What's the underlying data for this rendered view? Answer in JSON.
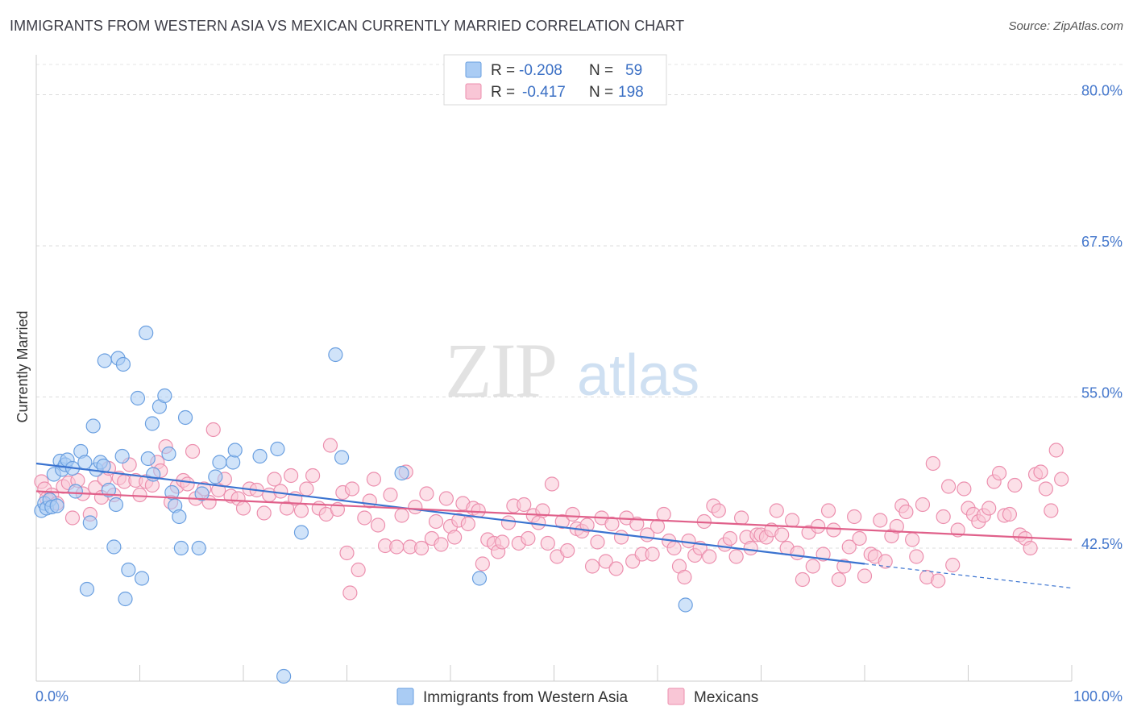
{
  "title": "IMMIGRANTS FROM WESTERN ASIA VS MEXICAN CURRENTLY MARRIED CORRELATION CHART",
  "source": "Source: ZipAtlas.com",
  "watermark": {
    "part1": "ZIP",
    "part2": "atlas"
  },
  "legend": {
    "r_label": "R =",
    "n_label": "N =",
    "rows": [
      {
        "r": "-0.208",
        "n": "59",
        "color": "#aaccf4",
        "stroke": "#6a9fe0"
      },
      {
        "r": "-0.417",
        "n": "198",
        "color": "#f9c6d6",
        "stroke": "#ec8fae"
      }
    ]
  },
  "chart_data": {
    "type": "scatter",
    "title": "IMMIGRANTS FROM WESTERN ASIA VS MEXICAN CURRENTLY MARRIED CORRELATION CHART",
    "xlabel": "",
    "ylabel": "Currently Married",
    "xlim": [
      0,
      100
    ],
    "ylim": [
      31.5,
      82.5
    ],
    "x_tick_labels": [
      "0.0%",
      "100.0%"
    ],
    "y_ticks": [
      42.5,
      55.0,
      67.5,
      80.0
    ],
    "y_tick_labels": [
      "42.5%",
      "55.0%",
      "67.5%",
      "80.0%"
    ],
    "grid": true,
    "legend_position": "top-center",
    "series": [
      {
        "name": "Immigrants from Western Asia",
        "color": "#aaccf4",
        "edge": "#6a9fe0",
        "line_color": "#3a73d0",
        "R": -0.208,
        "N": 59,
        "trend": {
          "x0": 0,
          "y0": 49.5,
          "x1": 80,
          "y1": 41.2,
          "dash_to_x": 100,
          "dash_to_y": 39.2
        },
        "points": [
          [
            0.5,
            45.6
          ],
          [
            0.8,
            46.2
          ],
          [
            1.0,
            45.8
          ],
          [
            1.3,
            46.5
          ],
          [
            1.5,
            45.9
          ],
          [
            1.7,
            48.6
          ],
          [
            2.0,
            46.0
          ],
          [
            2.3,
            49.7
          ],
          [
            2.5,
            49.0
          ],
          [
            2.8,
            49.4
          ],
          [
            3.0,
            49.8
          ],
          [
            3.5,
            49.1
          ],
          [
            3.8,
            47.2
          ],
          [
            4.3,
            50.5
          ],
          [
            4.7,
            49.6
          ],
          [
            5.2,
            44.6
          ],
          [
            5.5,
            52.6
          ],
          [
            5.8,
            49.0
          ],
          [
            6.2,
            49.6
          ],
          [
            6.5,
            49.3
          ],
          [
            6.6,
            58.0
          ],
          [
            7.0,
            47.3
          ],
          [
            7.5,
            42.6
          ],
          [
            7.7,
            46.1
          ],
          [
            7.9,
            58.2
          ],
          [
            8.3,
            50.1
          ],
          [
            8.4,
            57.7
          ],
          [
            8.6,
            38.3
          ],
          [
            8.9,
            40.7
          ],
          [
            9.8,
            54.9
          ],
          [
            10.2,
            40.0
          ],
          [
            10.6,
            60.3
          ],
          [
            10.8,
            49.9
          ],
          [
            11.2,
            52.8
          ],
          [
            11.3,
            48.6
          ],
          [
            11.9,
            54.2
          ],
          [
            12.4,
            55.1
          ],
          [
            12.8,
            50.3
          ],
          [
            13.1,
            47.1
          ],
          [
            13.4,
            46.0
          ],
          [
            13.8,
            45.1
          ],
          [
            14.0,
            42.5
          ],
          [
            14.4,
            53.3
          ],
          [
            15.7,
            42.5
          ],
          [
            16.0,
            47.0
          ],
          [
            17.3,
            48.4
          ],
          [
            17.7,
            49.6
          ],
          [
            19.0,
            49.6
          ],
          [
            19.2,
            50.6
          ],
          [
            21.6,
            50.1
          ],
          [
            23.3,
            50.7
          ],
          [
            25.6,
            43.8
          ],
          [
            28.9,
            58.5
          ],
          [
            29.5,
            50.0
          ],
          [
            35.3,
            48.7
          ],
          [
            42.8,
            40.0
          ],
          [
            62.7,
            37.8
          ],
          [
            23.9,
            31.9
          ],
          [
            4.9,
            39.1
          ]
        ]
      },
      {
        "name": "Mexicans",
        "color": "#f9c6d6",
        "edge": "#ec8fae",
        "line_color": "#e0608a",
        "R": -0.417,
        "N": 198,
        "trend": {
          "x0": 0,
          "y0": 47.2,
          "x1": 100,
          "y1": 43.2
        },
        "points": [
          [
            0.5,
            48.0
          ],
          [
            0.8,
            47.4
          ],
          [
            1.0,
            46.6
          ],
          [
            1.5,
            46.9
          ],
          [
            2.0,
            46.2
          ],
          [
            2.6,
            47.6
          ],
          [
            3.1,
            47.9
          ],
          [
            3.5,
            45.0
          ],
          [
            4.0,
            48.1
          ],
          [
            4.5,
            47.0
          ],
          [
            5.2,
            45.3
          ],
          [
            5.7,
            47.5
          ],
          [
            6.3,
            46.7
          ],
          [
            6.6,
            48.2
          ],
          [
            7.0,
            49.1
          ],
          [
            7.5,
            46.9
          ],
          [
            8.0,
            48.3
          ],
          [
            8.5,
            48.0
          ],
          [
            9.0,
            49.4
          ],
          [
            9.6,
            48.1
          ],
          [
            10.0,
            46.9
          ],
          [
            10.6,
            48.0
          ],
          [
            11.2,
            47.7
          ],
          [
            11.7,
            49.6
          ],
          [
            12.0,
            48.9
          ],
          [
            12.5,
            50.9
          ],
          [
            13.0,
            46.3
          ],
          [
            13.6,
            47.6
          ],
          [
            14.2,
            48.1
          ],
          [
            14.6,
            47.8
          ],
          [
            15.1,
            50.5
          ],
          [
            15.4,
            46.6
          ],
          [
            16.2,
            47.4
          ],
          [
            16.7,
            46.3
          ],
          [
            17.1,
            52.3
          ],
          [
            17.6,
            47.3
          ],
          [
            18.2,
            48.2
          ],
          [
            18.8,
            46.8
          ],
          [
            19.5,
            46.6
          ],
          [
            20.0,
            45.8
          ],
          [
            20.6,
            47.4
          ],
          [
            21.3,
            47.3
          ],
          [
            22.0,
            45.4
          ],
          [
            22.5,
            46.9
          ],
          [
            23.0,
            48.2
          ],
          [
            23.6,
            47.2
          ],
          [
            24.2,
            45.8
          ],
          [
            24.6,
            48.5
          ],
          [
            25.0,
            46.6
          ],
          [
            25.6,
            45.6
          ],
          [
            26.1,
            47.4
          ],
          [
            26.7,
            48.5
          ],
          [
            27.3,
            45.8
          ],
          [
            28.0,
            45.3
          ],
          [
            28.4,
            51.0
          ],
          [
            29.1,
            45.7
          ],
          [
            29.6,
            47.1
          ],
          [
            30.0,
            42.1
          ],
          [
            30.5,
            47.4
          ],
          [
            31.1,
            40.7
          ],
          [
            31.7,
            45.0
          ],
          [
            32.2,
            46.4
          ],
          [
            32.6,
            48.2
          ],
          [
            33.0,
            44.4
          ],
          [
            33.7,
            42.7
          ],
          [
            34.2,
            46.9
          ],
          [
            34.8,
            42.6
          ],
          [
            35.3,
            45.2
          ],
          [
            35.7,
            48.8
          ],
          [
            36.1,
            42.6
          ],
          [
            36.6,
            45.9
          ],
          [
            37.2,
            42.5
          ],
          [
            37.7,
            47.0
          ],
          [
            38.2,
            43.3
          ],
          [
            38.6,
            44.7
          ],
          [
            39.1,
            42.8
          ],
          [
            39.6,
            46.6
          ],
          [
            40.0,
            44.3
          ],
          [
            40.4,
            43.4
          ],
          [
            40.8,
            44.8
          ],
          [
            41.2,
            46.2
          ],
          [
            41.7,
            44.5
          ],
          [
            42.2,
            45.8
          ],
          [
            42.7,
            45.6
          ],
          [
            43.1,
            41.2
          ],
          [
            43.6,
            43.2
          ],
          [
            44.2,
            42.9
          ],
          [
            44.6,
            42.2
          ],
          [
            45.0,
            43.0
          ],
          [
            45.6,
            44.6
          ],
          [
            46.1,
            46.0
          ],
          [
            46.6,
            42.9
          ],
          [
            47.1,
            46.1
          ],
          [
            47.5,
            43.3
          ],
          [
            48.0,
            45.2
          ],
          [
            48.5,
            44.6
          ],
          [
            48.9,
            45.6
          ],
          [
            49.4,
            42.9
          ],
          [
            49.8,
            47.8
          ],
          [
            50.3,
            41.8
          ],
          [
            50.8,
            44.7
          ],
          [
            51.3,
            42.3
          ],
          [
            51.8,
            45.3
          ],
          [
            52.2,
            44.1
          ],
          [
            52.7,
            43.9
          ],
          [
            53.2,
            44.4
          ],
          [
            53.7,
            41.0
          ],
          [
            54.2,
            43.0
          ],
          [
            54.6,
            45.0
          ],
          [
            55.0,
            41.4
          ],
          [
            55.6,
            44.5
          ],
          [
            56.0,
            40.8
          ],
          [
            56.5,
            43.4
          ],
          [
            57.0,
            45.0
          ],
          [
            57.6,
            41.4
          ],
          [
            58.0,
            44.5
          ],
          [
            58.5,
            42.0
          ],
          [
            59.0,
            43.6
          ],
          [
            59.5,
            42.0
          ],
          [
            60.0,
            44.3
          ],
          [
            60.6,
            45.3
          ],
          [
            61.1,
            43.1
          ],
          [
            61.6,
            42.5
          ],
          [
            62.1,
            41.0
          ],
          [
            62.6,
            40.1
          ],
          [
            63.0,
            43.1
          ],
          [
            63.6,
            41.9
          ],
          [
            64.1,
            42.5
          ],
          [
            64.5,
            44.7
          ],
          [
            65.0,
            41.8
          ],
          [
            65.4,
            46.0
          ],
          [
            65.9,
            45.6
          ],
          [
            66.5,
            42.8
          ],
          [
            67.0,
            43.3
          ],
          [
            67.6,
            41.8
          ],
          [
            68.1,
            45.0
          ],
          [
            68.6,
            43.4
          ],
          [
            69.0,
            42.5
          ],
          [
            69.6,
            43.6
          ],
          [
            70.0,
            43.6
          ],
          [
            70.5,
            43.4
          ],
          [
            71.0,
            44.0
          ],
          [
            71.5,
            45.6
          ],
          [
            72.0,
            43.6
          ],
          [
            72.5,
            42.5
          ],
          [
            73.0,
            44.8
          ],
          [
            73.5,
            42.1
          ],
          [
            74.0,
            39.9
          ],
          [
            74.6,
            43.8
          ],
          [
            75.0,
            41.0
          ],
          [
            75.5,
            44.3
          ],
          [
            76.0,
            42.0
          ],
          [
            76.5,
            45.6
          ],
          [
            77.0,
            44.0
          ],
          [
            77.5,
            39.9
          ],
          [
            78.0,
            41.0
          ],
          [
            78.5,
            42.6
          ],
          [
            79.0,
            45.1
          ],
          [
            79.5,
            43.3
          ],
          [
            80.0,
            40.2
          ],
          [
            80.6,
            42.0
          ],
          [
            81.0,
            41.8
          ],
          [
            81.5,
            44.8
          ],
          [
            82.0,
            41.4
          ],
          [
            82.6,
            43.5
          ],
          [
            83.1,
            44.3
          ],
          [
            83.6,
            46.0
          ],
          [
            84.0,
            45.5
          ],
          [
            84.6,
            43.2
          ],
          [
            85.0,
            41.8
          ],
          [
            85.6,
            46.1
          ],
          [
            86.0,
            40.1
          ],
          [
            86.6,
            49.5
          ],
          [
            87.1,
            39.8
          ],
          [
            87.6,
            45.1
          ],
          [
            88.1,
            47.6
          ],
          [
            88.5,
            41.1
          ],
          [
            89.0,
            44.0
          ],
          [
            89.6,
            47.4
          ],
          [
            90.0,
            45.8
          ],
          [
            90.5,
            45.3
          ],
          [
            91.0,
            44.7
          ],
          [
            91.5,
            45.2
          ],
          [
            92.0,
            45.8
          ],
          [
            92.5,
            48.0
          ],
          [
            93.0,
            48.7
          ],
          [
            93.5,
            45.2
          ],
          [
            94.0,
            45.3
          ],
          [
            94.5,
            47.7
          ],
          [
            95.0,
            43.6
          ],
          [
            95.5,
            43.3
          ],
          [
            96.0,
            42.5
          ],
          [
            96.5,
            48.6
          ],
          [
            97.0,
            48.8
          ],
          [
            97.5,
            47.4
          ],
          [
            98.0,
            45.6
          ],
          [
            98.5,
            50.6
          ],
          [
            99.0,
            48.2
          ],
          [
            30.3,
            38.8
          ]
        ]
      }
    ]
  },
  "bottom_legend": [
    {
      "label": "Immigrants from Western Asia",
      "color": "#aaccf4",
      "stroke": "#6a9fe0"
    },
    {
      "label": "Mexicans",
      "color": "#f9c6d6",
      "stroke": "#ec8fae"
    }
  ]
}
